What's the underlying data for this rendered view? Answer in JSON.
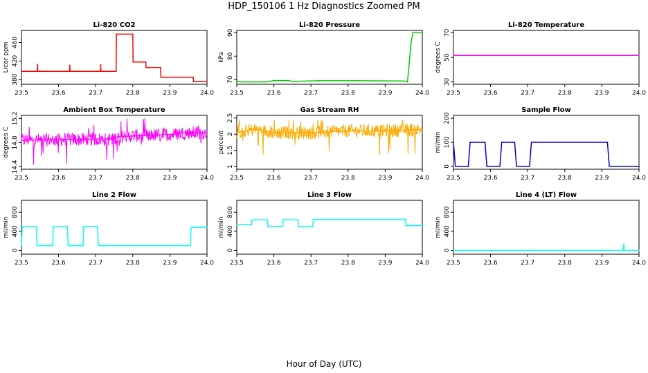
{
  "figure": {
    "title": "HDP_150106  1 Hz Diagnostics Zoomed PM",
    "xlabel": "Hour of Day (UTC)"
  },
  "chart_data": [
    {
      "type": "line",
      "title": "Li-820 CO2",
      "ylabel": "Licor ppm",
      "xlim": [
        23.5,
        24.0
      ],
      "ylim": [
        370,
        486
      ],
      "yticks": [
        380,
        420,
        460
      ],
      "xticks": [
        23.5,
        23.6,
        23.7,
        23.8,
        23.9,
        24.0
      ],
      "series": [
        {
          "name": "CO2",
          "color": "#ff0000",
          "x": [
            23.5,
            23.543,
            23.5435,
            23.544,
            23.63,
            23.6305,
            23.631,
            23.713,
            23.7135,
            23.714,
            23.755,
            23.756,
            23.8,
            23.801,
            23.835,
            23.836,
            23.875,
            23.876,
            23.963,
            23.9635,
            23.964,
            24.0
          ],
          "y": [
            398,
            398,
            413,
            398,
            398,
            411,
            398,
            398,
            412,
            398,
            398,
            478,
            478,
            418,
            418,
            406,
            406,
            385,
            385,
            378,
            376,
            376
          ]
        }
      ]
    },
    {
      "type": "line",
      "title": "Li-820 Pressure",
      "ylabel": "kPa",
      "xlim": [
        23.5,
        24.0
      ],
      "ylim": [
        68,
        91
      ],
      "yticks": [
        70,
        80,
        90
      ],
      "xticks": [
        23.5,
        23.6,
        23.7,
        23.8,
        23.9,
        24.0
      ],
      "series": [
        {
          "name": "Pressure",
          "color": "#00cc00",
          "x": [
            23.5,
            23.51,
            23.58,
            23.6,
            23.64,
            23.65,
            23.72,
            23.82,
            23.95,
            23.96,
            23.97,
            23.975,
            24.0
          ],
          "y": [
            69.3,
            69.0,
            69.0,
            69.6,
            69.6,
            69.2,
            69.5,
            69.5,
            69.4,
            69.0,
            86,
            90.2,
            90.2
          ]
        }
      ]
    },
    {
      "type": "line",
      "title": "Li-820 Temperature",
      "ylabel": "degrees C",
      "xlim": [
        23.5,
        24.0
      ],
      "ylim": [
        28,
        72
      ],
      "yticks": [
        30,
        50,
        70
      ],
      "xticks": [
        23.5,
        23.6,
        23.7,
        23.8,
        23.9,
        24.0
      ],
      "series": [
        {
          "name": "Temperature",
          "color": "#ff00ff",
          "x": [
            23.5,
            24.0
          ],
          "y": [
            51.5,
            51.5
          ]
        }
      ]
    },
    {
      "type": "line",
      "title": "Ambient Box Temperature",
      "ylabel": "degrees C",
      "xlim": [
        23.5,
        24.0
      ],
      "ylim": [
        14.36,
        15.25
      ],
      "yticks": [
        14.4,
        14.8,
        15.2
      ],
      "xticks": [
        23.5,
        23.6,
        23.7,
        23.8,
        23.9,
        24.0
      ],
      "series": [
        {
          "name": "Box Temperature",
          "color": "#ff00ff",
          "x": [
            23.5,
            23.75,
            23.76,
            23.92,
            23.93,
            24.0
          ],
          "y": [
            14.84,
            14.86,
            14.9,
            14.94,
            14.96,
            14.96
          ],
          "y_noise_range": [
            14.42,
            15.2
          ]
        }
      ]
    },
    {
      "type": "line",
      "title": "Gas Stream RH",
      "ylabel": "percent",
      "xlim": [
        23.5,
        24.0
      ],
      "ylim": [
        0.92,
        2.58
      ],
      "yticks": [
        1.0,
        1.5,
        2.0,
        2.5
      ],
      "xticks": [
        23.5,
        23.6,
        23.7,
        23.8,
        23.9,
        24.0
      ],
      "series": [
        {
          "name": "RH",
          "color": "#ffaa00",
          "x": [
            23.5,
            23.55,
            23.6,
            23.7,
            23.8,
            23.9,
            24.0
          ],
          "y": [
            2.05,
            2.15,
            2.05,
            2.05,
            2.1,
            2.1,
            2.15
          ],
          "y_noise_range": [
            1.0,
            2.45
          ]
        }
      ]
    },
    {
      "type": "line",
      "title": "Sample Flow",
      "ylabel": "ml/min",
      "xlim": [
        23.5,
        24.0
      ],
      "ylim": [
        -12,
        212
      ],
      "yticks": [
        0,
        100,
        200
      ],
      "xticks": [
        23.5,
        23.6,
        23.7,
        23.8,
        23.9,
        24.0
      ],
      "series": [
        {
          "name": "Sample Flow",
          "color": "#0000cc",
          "x": [
            23.5,
            23.505,
            23.54,
            23.545,
            23.585,
            23.59,
            23.625,
            23.63,
            23.665,
            23.67,
            23.705,
            23.71,
            23.915,
            23.92,
            24.0
          ],
          "y": [
            100,
            0,
            0,
            100,
            100,
            0,
            0,
            100,
            100,
            0,
            0,
            100,
            100,
            0,
            0
          ]
        }
      ]
    },
    {
      "type": "line",
      "title": "Line 2 Flow",
      "ylabel": "ml/min",
      "xlim": [
        23.5,
        24.0
      ],
      "ylim": [
        -80,
        1050
      ],
      "yticks": [
        0,
        400,
        800
      ],
      "xticks": [
        23.5,
        23.6,
        23.7,
        23.8,
        23.9,
        24.0
      ],
      "series": [
        {
          "name": "Line 2",
          "color": "#00ffff",
          "x": [
            23.5,
            23.502,
            23.54,
            23.542,
            23.584,
            23.586,
            23.624,
            23.626,
            23.666,
            23.668,
            23.705,
            23.707,
            23.955,
            23.957,
            24.0
          ],
          "y": [
            100,
            500,
            500,
            100,
            100,
            500,
            500,
            100,
            100,
            500,
            500,
            100,
            100,
            480,
            480
          ]
        }
      ]
    },
    {
      "type": "line",
      "title": "Line 3 Flow",
      "ylabel": "ml/min",
      "xlim": [
        23.5,
        24.0
      ],
      "ylim": [
        -80,
        1050
      ],
      "yticks": [
        0,
        400,
        800
      ],
      "xticks": [
        23.5,
        23.6,
        23.7,
        23.8,
        23.9,
        24.0
      ],
      "series": [
        {
          "name": "Line 3",
          "color": "#00ffff",
          "x": [
            23.5,
            23.54,
            23.541,
            23.583,
            23.584,
            23.624,
            23.625,
            23.665,
            23.666,
            23.705,
            23.706,
            23.955,
            23.956,
            24.0
          ],
          "y": [
            540,
            540,
            640,
            640,
            500,
            500,
            640,
            640,
            500,
            500,
            650,
            650,
            520,
            520
          ]
        }
      ]
    },
    {
      "type": "line",
      "title": "Line 4 (LT) Flow",
      "ylabel": "ml/min",
      "xlim": [
        23.5,
        24.0
      ],
      "ylim": [
        -80,
        1050
      ],
      "yticks": [
        0,
        400,
        800
      ],
      "xticks": [
        23.5,
        23.6,
        23.7,
        23.8,
        23.9,
        24.0
      ],
      "series": [
        {
          "name": "Line 4",
          "color": "#00ffff",
          "x": [
            23.5,
            23.958,
            23.959,
            23.9595,
            23.96,
            24.0
          ],
          "y": [
            0,
            0,
            130,
            130,
            0,
            0
          ]
        }
      ]
    }
  ]
}
